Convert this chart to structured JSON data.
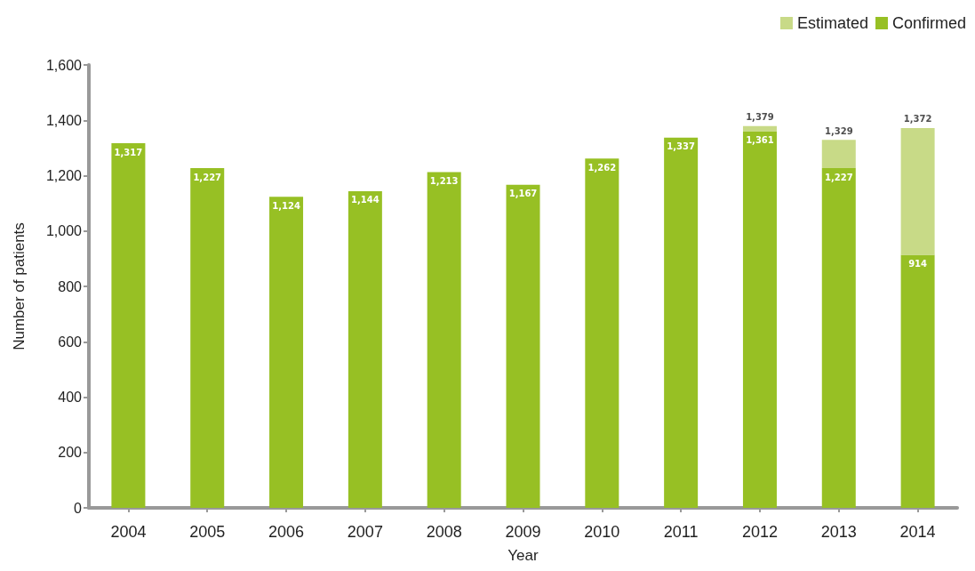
{
  "chart_data": {
    "type": "bar",
    "xlabel": "Year",
    "ylabel": "Number of patients",
    "categories": [
      "2004",
      "2005",
      "2006",
      "2007",
      "2008",
      "2009",
      "2010",
      "2011",
      "2012",
      "2013",
      "2014"
    ],
    "stacked": true,
    "series": [
      {
        "name": "Confirmed",
        "color": "#97c024",
        "values": [
          1317,
          1227,
          1124,
          1144,
          1213,
          1167,
          1262,
          1337,
          1361,
          1227,
          914
        ],
        "value_labels": [
          "1,317",
          "1,227",
          "1,124",
          "1,144",
          "1,213",
          "1,167",
          "1,262",
          "1,337",
          "1,361",
          "1,227",
          "914"
        ]
      },
      {
        "name": "Estimated",
        "color": "#c8da87",
        "values": [
          null,
          null,
          null,
          null,
          null,
          null,
          null,
          null,
          18,
          102,
          458
        ]
      }
    ],
    "totals": [
      null,
      null,
      null,
      null,
      null,
      null,
      null,
      null,
      "1,379",
      "1,329",
      "1,372"
    ],
    "ylim": [
      0,
      1600
    ],
    "yticks": [
      0,
      200,
      400,
      600,
      800,
      {
        "value": 1000,
        "label": "1,000"
      },
      {
        "value": 1200,
        "label": "1,200"
      },
      {
        "value": 1400,
        "label": "1,400"
      },
      {
        "value": 1600,
        "label": "1,600"
      }
    ],
    "grid": false,
    "legend": "top right"
  }
}
